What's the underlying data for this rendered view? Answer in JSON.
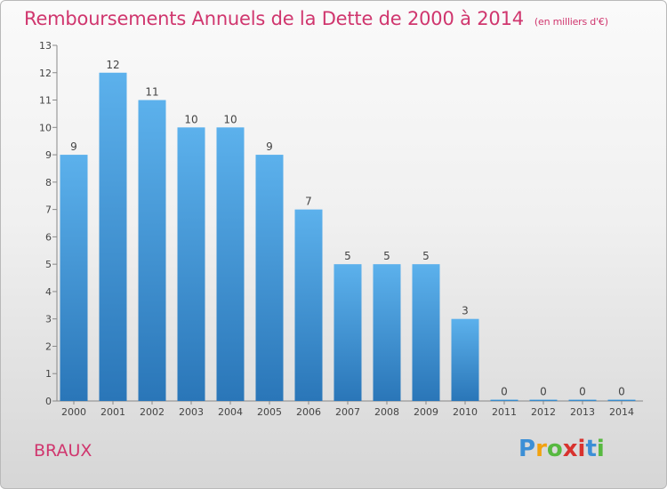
{
  "title": "Remboursements Annuels de la Dette de 2000 à 2014",
  "unit": "(en milliers d'€)",
  "commune": "BRAUX",
  "logo": {
    "letters": [
      "P",
      "r",
      "o",
      "x",
      "i",
      "t",
      "i"
    ],
    "colors": [
      "#3c8fd6",
      "#f2a20f",
      "#57b940",
      "#d8322e",
      "#d8322e",
      "#3c8fd6",
      "#57b940"
    ]
  },
  "chart_data": {
    "type": "bar",
    "title": "Remboursements Annuels de la Dette de 2000 à 2014",
    "xlabel": "",
    "ylabel": "",
    "categories": [
      "2000",
      "2001",
      "2002",
      "2003",
      "2004",
      "2005",
      "2006",
      "2007",
      "2008",
      "2009",
      "2010",
      "2011",
      "2012",
      "2013",
      "2014"
    ],
    "values": [
      9,
      12,
      11,
      10,
      10,
      9,
      7,
      5,
      5,
      5,
      3,
      0,
      0,
      0,
      0
    ],
    "ylim": [
      0,
      13
    ],
    "yticks": [
      0,
      1,
      2,
      3,
      4,
      5,
      6,
      7,
      8,
      9,
      10,
      11,
      12,
      13
    ],
    "grid": false,
    "colors": {
      "bar_top": "#5cb1ec",
      "bar_bottom": "#2a76b8"
    }
  }
}
